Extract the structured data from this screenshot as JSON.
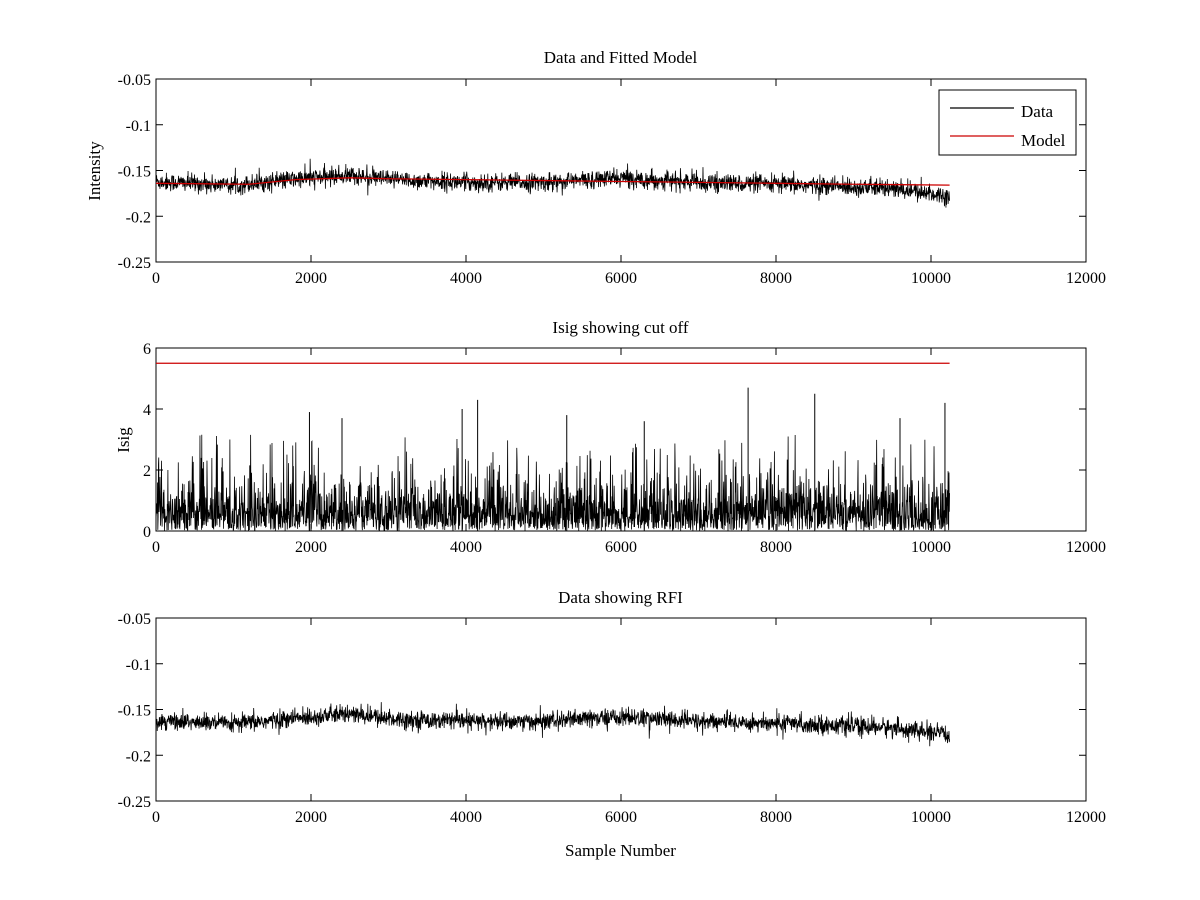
{
  "chart_data": [
    {
      "type": "line",
      "title": "Data and Fitted Model",
      "xlabel": "",
      "ylabel": "Intensity",
      "xlim": [
        0,
        12000
      ],
      "ylim": [
        -0.25,
        -0.05
      ],
      "y_reversed": true,
      "xticks": [
        0,
        2000,
        4000,
        6000,
        8000,
        10000,
        12000
      ],
      "xtick_labels": [
        "0",
        "2000",
        "4000",
        "6000",
        "8000",
        "10000",
        "12000"
      ],
      "yticks": [
        -0.05,
        -0.1,
        -0.15,
        -0.2,
        -0.25
      ],
      "ytick_labels": [
        "-0.05",
        "-0.1",
        "-0.15",
        "-0.2",
        "-0.25"
      ],
      "legend": {
        "position": "top-right",
        "entries": [
          "Data",
          "Model"
        ]
      },
      "series": [
        {
          "name": "Data",
          "color": "#000000",
          "style": "noise",
          "n_points": 10240,
          "baseline": [
            [
              0,
              -0.162
            ],
            [
              1000,
              -0.166
            ],
            [
              1500,
              -0.162
            ],
            [
              2000,
              -0.158
            ],
            [
              2500,
              -0.155
            ],
            [
              3000,
              -0.16
            ],
            [
              4000,
              -0.163
            ],
            [
              5000,
              -0.163
            ],
            [
              6000,
              -0.158
            ],
            [
              7000,
              -0.163
            ],
            [
              8000,
              -0.165
            ],
            [
              9000,
              -0.168
            ],
            [
              9500,
              -0.17
            ],
            [
              10240,
              -0.178
            ]
          ],
          "spread": 0.009,
          "min": -0.203,
          "max": -0.135
        },
        {
          "name": "Model",
          "color": "#cc0000",
          "points": [
            [
              0,
              -0.164
            ],
            [
              1200,
              -0.165
            ],
            [
              1800,
              -0.16
            ],
            [
              2500,
              -0.158
            ],
            [
              3000,
              -0.159
            ],
            [
              4000,
              -0.16
            ],
            [
              5000,
              -0.161
            ],
            [
              6000,
              -0.162
            ],
            [
              7000,
              -0.163
            ],
            [
              8000,
              -0.164
            ],
            [
              9000,
              -0.165
            ],
            [
              10240,
              -0.166
            ]
          ]
        }
      ]
    },
    {
      "type": "line",
      "title": "Isig showing cut off",
      "xlabel": "",
      "ylabel": "Isig",
      "xlim": [
        0,
        12000
      ],
      "ylim": [
        0,
        6
      ],
      "xticks": [
        0,
        2000,
        4000,
        6000,
        8000,
        10000,
        12000
      ],
      "xtick_labels": [
        "0",
        "2000",
        "4000",
        "6000",
        "8000",
        "10000",
        "12000"
      ],
      "yticks": [
        0,
        2,
        4,
        6
      ],
      "ytick_labels": [
        "0",
        "2",
        "4",
        "6"
      ],
      "series": [
        {
          "name": "Isig",
          "color": "#000000",
          "style": "spikes",
          "n_points": 10240,
          "typical_max": 1.5,
          "peak_values": [
            [
              4150,
              4.3
            ],
            [
              7640,
              4.7
            ],
            [
              8500,
              4.5
            ],
            [
              10180,
              4.2
            ],
            [
              1980,
              3.9
            ],
            [
              3950,
              4.0
            ],
            [
              5300,
              3.8
            ],
            [
              9600,
              3.7
            ],
            [
              2400,
              3.7
            ],
            [
              6300,
              3.6
            ]
          ],
          "min": 0,
          "max": 4.7
        },
        {
          "name": "Cut off",
          "color": "#cc0000",
          "points": [
            [
              0,
              5.5
            ],
            [
              10240,
              5.5
            ]
          ]
        }
      ]
    },
    {
      "type": "line",
      "title": "Data showing RFI",
      "xlabel": "Sample Number",
      "ylabel": "",
      "xlim": [
        0,
        12000
      ],
      "ylim": [
        -0.25,
        -0.05
      ],
      "y_reversed": true,
      "xticks": [
        0,
        2000,
        4000,
        6000,
        8000,
        10000,
        12000
      ],
      "xtick_labels": [
        "0",
        "2000",
        "4000",
        "6000",
        "8000",
        "10000",
        "12000"
      ],
      "yticks": [
        -0.05,
        -0.1,
        -0.15,
        -0.2,
        -0.25
      ],
      "ytick_labels": [
        "-0.05",
        "-0.1",
        "-0.15",
        "-0.2",
        "-0.25"
      ],
      "series": [
        {
          "name": "Data",
          "color": "#000000",
          "style": "noise",
          "n_points": 10240,
          "baseline": [
            [
              0,
              -0.162
            ],
            [
              1000,
              -0.166
            ],
            [
              1500,
              -0.162
            ],
            [
              2000,
              -0.158
            ],
            [
              2500,
              -0.155
            ],
            [
              3000,
              -0.16
            ],
            [
              4000,
              -0.163
            ],
            [
              5000,
              -0.163
            ],
            [
              6000,
              -0.158
            ],
            [
              7000,
              -0.163
            ],
            [
              8000,
              -0.165
            ],
            [
              9000,
              -0.168
            ],
            [
              9500,
              -0.17
            ],
            [
              10240,
              -0.178
            ]
          ],
          "spread": 0.009,
          "min": -0.203,
          "max": -0.135
        }
      ]
    }
  ]
}
